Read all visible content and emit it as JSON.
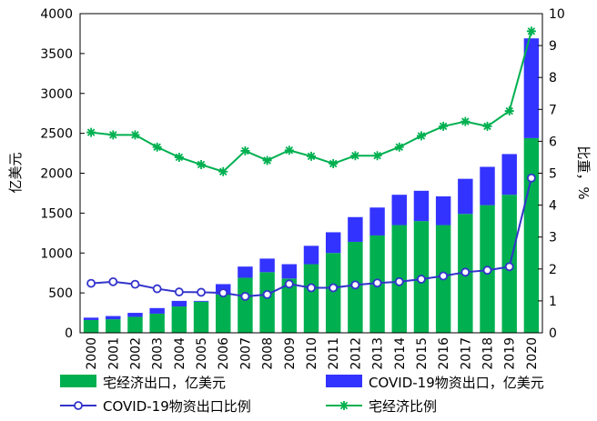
{
  "chart_data": {
    "type": "bar",
    "categories": [
      "2000",
      "2001",
      "2002",
      "2003",
      "2004",
      "2005",
      "2006",
      "2007",
      "2008",
      "2009",
      "2010",
      "2011",
      "2012",
      "2013",
      "2014",
      "2015",
      "2016",
      "2017",
      "2018",
      "2019",
      "2020"
    ],
    "series": [
      {
        "name": "宅经济出口，亿美元",
        "kind": "stacked-bar",
        "axis": "left",
        "color": "#00b050",
        "values": [
          160,
          170,
          200,
          240,
          330,
          390,
          480,
          690,
          760,
          680,
          860,
          1000,
          1140,
          1220,
          1350,
          1400,
          1350,
          1490,
          1600,
          1730,
          2440
        ]
      },
      {
        "name": "COVID-19物资出口，亿美元",
        "kind": "stacked-bar",
        "axis": "left",
        "color": "#3333ff",
        "values": [
          30,
          40,
          50,
          70,
          70,
          10,
          130,
          140,
          170,
          180,
          230,
          260,
          310,
          350,
          380,
          380,
          360,
          440,
          480,
          510,
          1250
        ]
      },
      {
        "name": "COVID-19物资出口比例",
        "kind": "line",
        "marker": "circle",
        "axis": "right",
        "color": "#3333cc",
        "values": [
          1.55,
          1.6,
          1.52,
          1.38,
          1.28,
          1.27,
          1.25,
          1.14,
          1.2,
          1.53,
          1.41,
          1.41,
          1.5,
          1.56,
          1.6,
          1.68,
          1.78,
          1.9,
          1.96,
          2.07,
          4.85
        ]
      },
      {
        "name": "宅经济比例",
        "kind": "line",
        "marker": "star",
        "axis": "right",
        "color": "#00b050",
        "values": [
          6.28,
          6.2,
          6.2,
          5.82,
          5.5,
          5.27,
          5.05,
          5.7,
          5.4,
          5.72,
          5.53,
          5.3,
          5.55,
          5.55,
          5.82,
          6.17,
          6.47,
          6.62,
          6.47,
          6.95,
          9.45
        ]
      }
    ],
    "ylabel": "亿美元",
    "y2label": "比重，%",
    "ylim": [
      0,
      4000
    ],
    "yticks": [
      0,
      500,
      1000,
      1500,
      2000,
      2500,
      3000,
      3500,
      4000
    ],
    "y2lim": [
      0,
      10
    ],
    "y2ticks": [
      0,
      1,
      2,
      3,
      4,
      5,
      6,
      7,
      8,
      9,
      10
    ],
    "grid": false,
    "legend": {
      "position": "bottom",
      "entries": [
        "宅经济出口，亿美元",
        "COVID-19物资出口，亿美元",
        "COVID-19物资出口比例",
        "宅经济比例"
      ]
    }
  }
}
